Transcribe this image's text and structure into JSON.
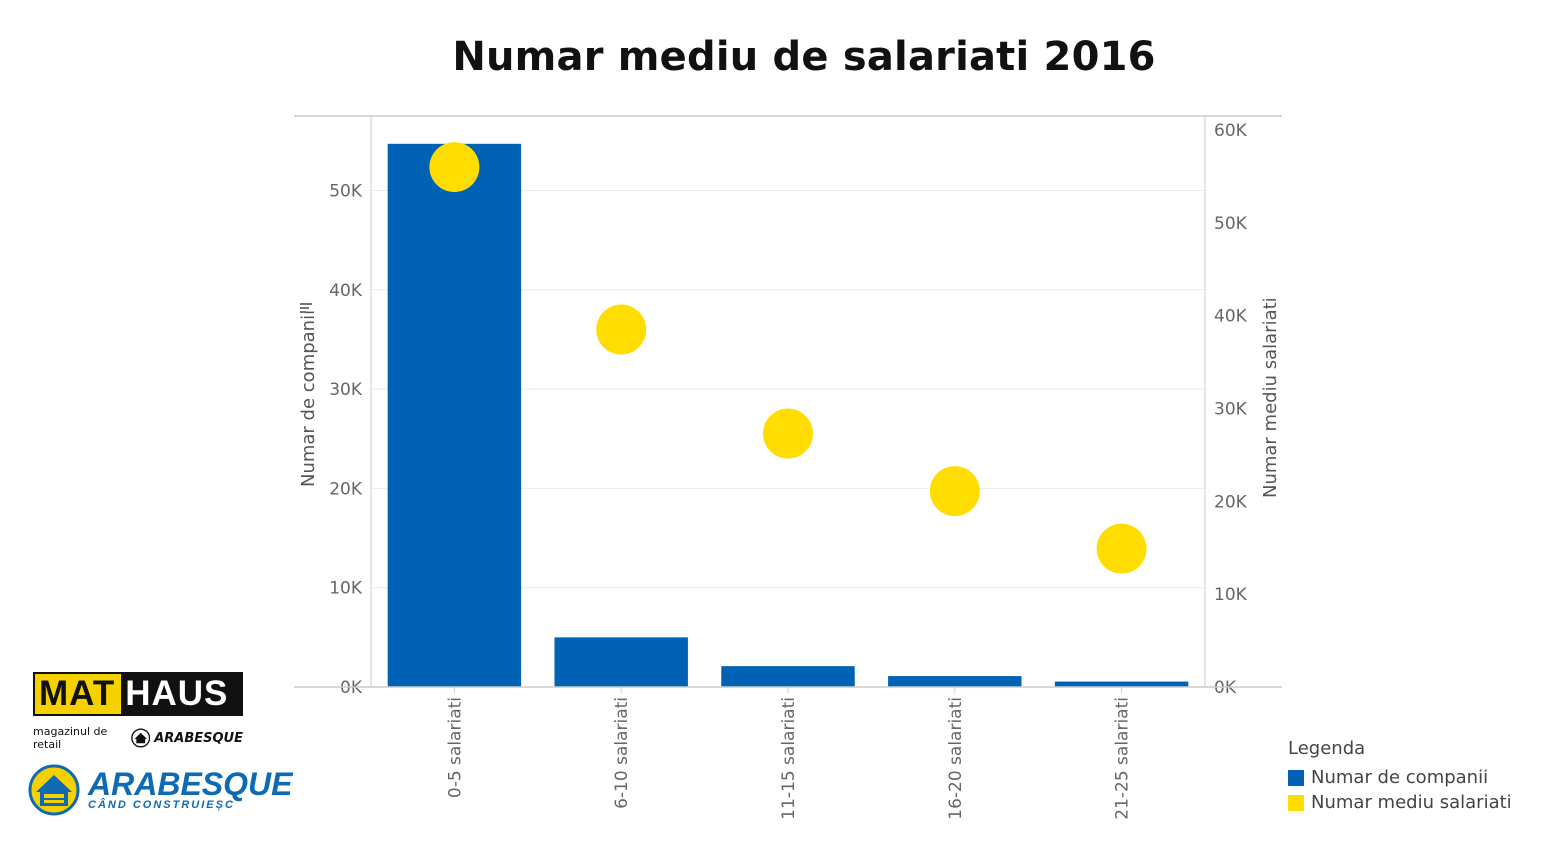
{
  "chart_data": {
    "type": "bar",
    "title": "Numar mediu de salariati 2016",
    "categories": [
      "0-5 salariati",
      "6-10 salariati",
      "11-15 salariati",
      "16-20 salariati",
      "21-25 salariati"
    ],
    "series": [
      {
        "name": "Numar de companii",
        "type": "bar",
        "axis": "left",
        "color": "#0062b4",
        "values": [
          54700,
          5000,
          2100,
          1100,
          550
        ]
      },
      {
        "name": "Numar mediu salariati",
        "type": "scatter",
        "axis": "right",
        "color": "#ffdd00",
        "values": [
          56000,
          38500,
          27300,
          21100,
          14900
        ]
      }
    ],
    "ylabel_left": "Numar de companii",
    "ylabel_right": "Numar mediu salariati",
    "ylim_left": [
      0,
      57500
    ],
    "ylim_right": [
      0,
      61500
    ],
    "yticks_left": [
      0,
      10000,
      20000,
      30000,
      40000,
      50000
    ],
    "yticks_left_labels": [
      "0K",
      "10K",
      "20K",
      "30K",
      "40K",
      "50K"
    ],
    "yticks_right": [
      0,
      10000,
      20000,
      30000,
      40000,
      50000,
      60000
    ],
    "yticks_right_labels": [
      "0K",
      "10K",
      "20K",
      "30K",
      "40K",
      "50K",
      "60K"
    ],
    "grid": true,
    "legend_position": "bottom-right",
    "legend_title": "Legenda"
  },
  "logos": {
    "mathaus_left": "MAT",
    "mathaus_right": "HAUS",
    "mathaus_tagline": "magazinul de retail",
    "mathaus_tagline_brand": "ARABESQUE",
    "arabesque_brand": "ARABESQUE",
    "arabesque_slogan": "CÂND CONSTRUIEȘC"
  },
  "colors": {
    "bar": "#0062b4",
    "dot": "#ffdd00",
    "grid": "#ececec",
    "axis": "#cccccc"
  }
}
